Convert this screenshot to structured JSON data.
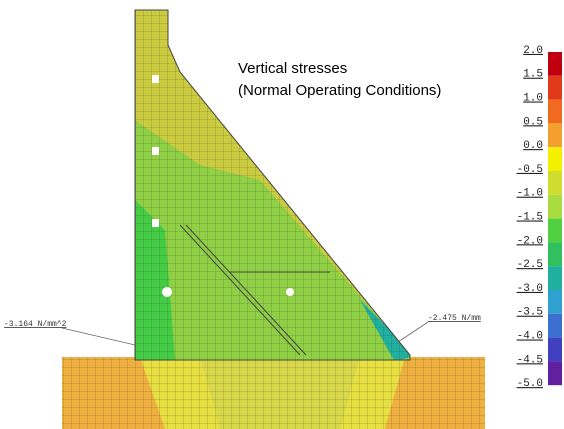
{
  "title": [
    "Vertical stresses",
    "(Normal Operating Conditions)"
  ],
  "annotations": [
    "-3.164 N/mm^2",
    "-2.475 N/mm"
  ],
  "legend": {
    "labels": [
      "2.0",
      "1.5",
      "1.0",
      "0.5",
      "0.0",
      "-0.5",
      "-1.0",
      "-1.5",
      "-2.0",
      "-2.5",
      "-3.0",
      "-3.5",
      "-4.0",
      "-4.5",
      "-5.0"
    ],
    "colors": [
      "#c00010",
      "#e03a1c",
      "#f06a20",
      "#f4a030",
      "#f4f000",
      "#d0dc30",
      "#a8dc40",
      "#50d040",
      "#30c060",
      "#20b0a0",
      "#30a0d0",
      "#3c70d0",
      "#4040c0",
      "#6020a0"
    ]
  }
}
